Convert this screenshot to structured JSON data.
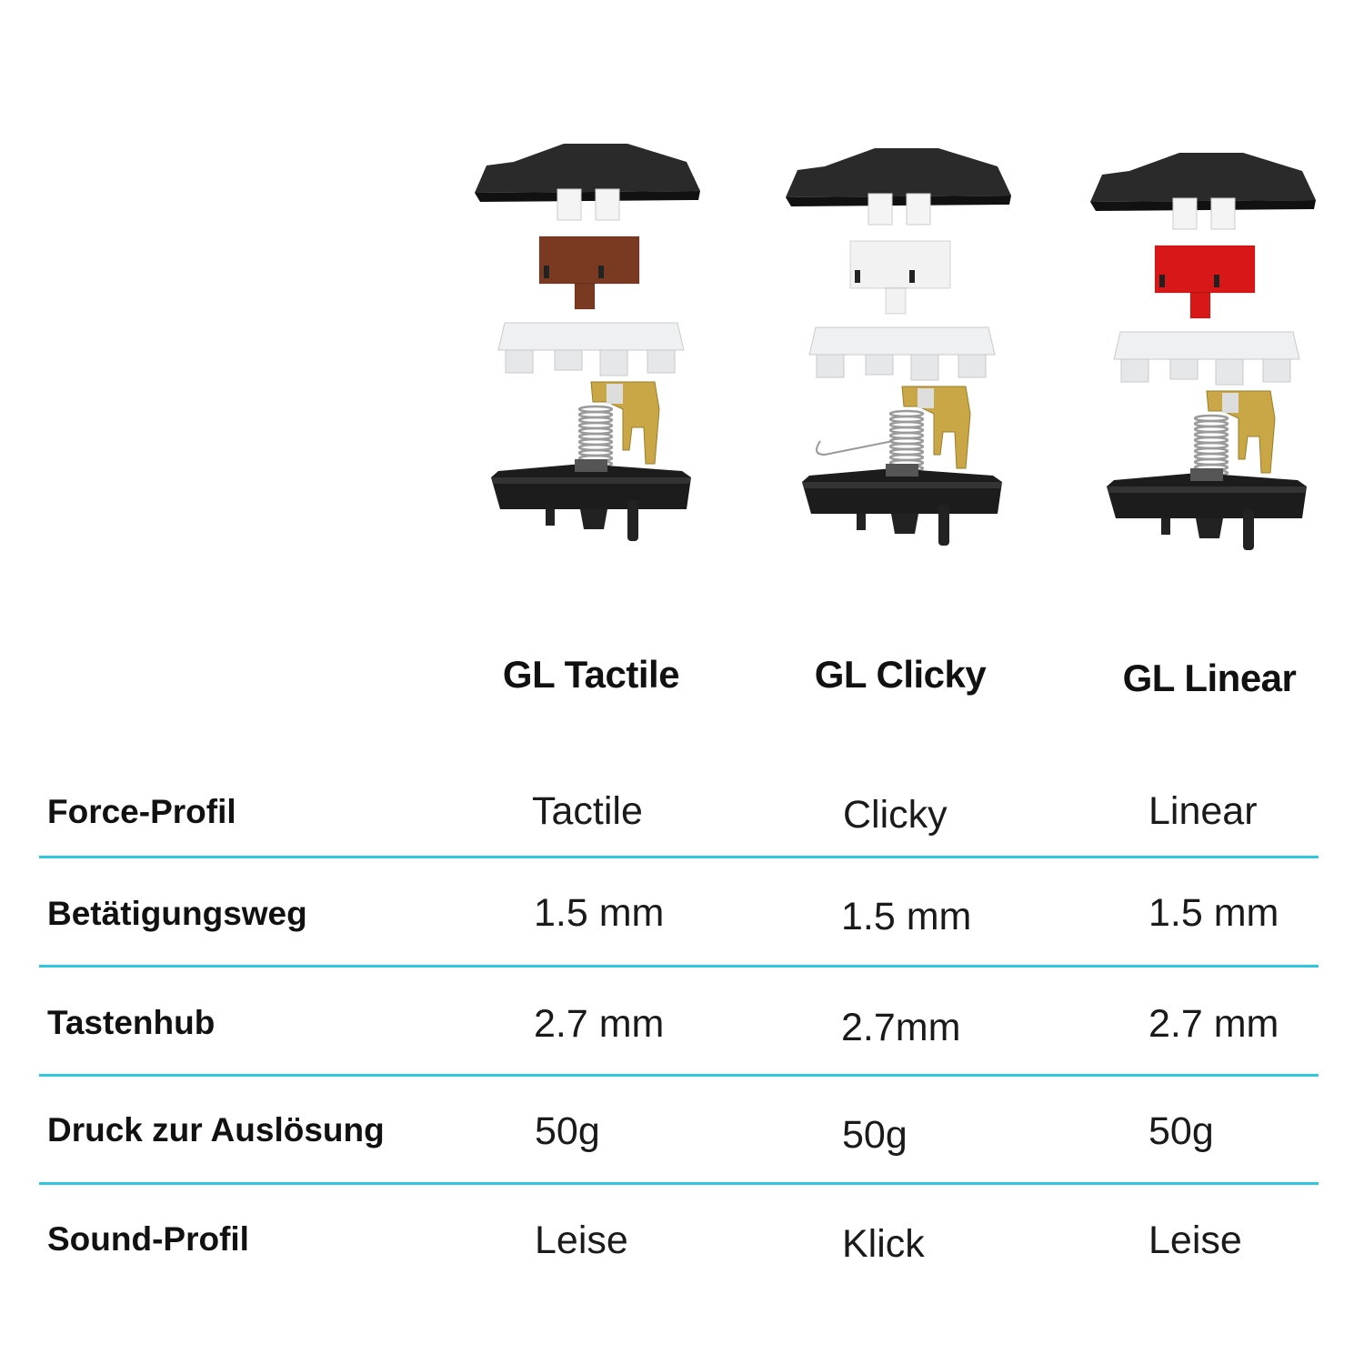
{
  "colors": {
    "divider": "#2fc6e0"
  },
  "switches": [
    {
      "title": "GL Tactile",
      "stem_color": "#7a3a22"
    },
    {
      "title": "GL Clicky",
      "stem_color": "#f2f2f2"
    },
    {
      "title": "GL Linear",
      "stem_color": "#d81818"
    }
  ],
  "rows": [
    {
      "label": "Force-Profil",
      "values": [
        "Tactile",
        "Clicky",
        "Linear"
      ]
    },
    {
      "label": "Betätigungsweg",
      "values": [
        "1.5 mm",
        "1.5 mm",
        "1.5 mm"
      ]
    },
    {
      "label": "Tastenhub",
      "values": [
        "2.7 mm",
        "2.7mm",
        "2.7 mm"
      ]
    },
    {
      "label": "Druck zur Auslösung",
      "values": [
        "50g",
        "50g",
        "50g"
      ]
    },
    {
      "label": "Sound-Profil",
      "values": [
        "Leise",
        "Klick",
        "Leise"
      ]
    }
  ]
}
